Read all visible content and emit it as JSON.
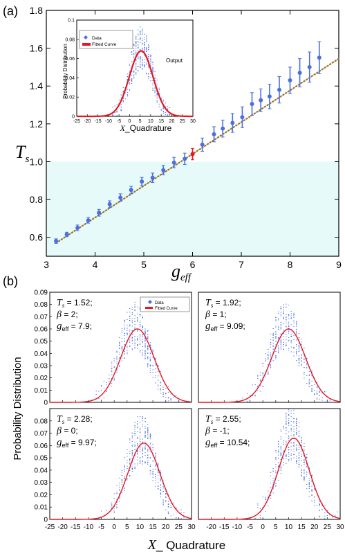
{
  "panel_a": {
    "label": "(a)",
    "xlabel_main": "g",
    "xlabel_sub": "eff",
    "ylabel_main": "T",
    "ylabel_sub": "s",
    "xlim": [
      3,
      9
    ],
    "ylim": [
      0.5,
      1.8
    ],
    "xticks": [
      "3",
      "4",
      "5",
      "6",
      "7",
      "8",
      "9"
    ],
    "yticks": [
      "0.6",
      "0.8",
      "1.0",
      "1.2",
      "1.4",
      "1.6",
      "1.8"
    ],
    "shade_below": 1.0,
    "shade_color": "#e6fafa",
    "point_color": "#4a6fe0",
    "highlight_color": "#e8141e",
    "theory_color": "#a0742a",
    "chart_data": {
      "type": "scatter",
      "x": [
        3.2,
        3.42,
        3.64,
        3.86,
        4.08,
        4.3,
        4.52,
        4.74,
        4.96,
        5.18,
        5.4,
        5.62,
        5.84,
        6.0,
        6.2,
        6.44,
        6.62,
        6.82,
        7.02,
        7.22,
        7.4,
        7.58,
        7.78,
        8.0,
        8.2,
        8.4,
        8.6
      ],
      "y": [
        0.58,
        0.615,
        0.65,
        0.69,
        0.73,
        0.775,
        0.81,
        0.85,
        0.895,
        0.915,
        0.955,
        0.995,
        1.015,
        1.04,
        1.09,
        1.145,
        1.175,
        1.205,
        1.235,
        1.305,
        1.325,
        1.345,
        1.38,
        1.43,
        1.47,
        1.5,
        1.55
      ],
      "err": [
        0.012,
        0.012,
        0.015,
        0.015,
        0.018,
        0.018,
        0.02,
        0.02,
        0.022,
        0.025,
        0.025,
        0.028,
        0.03,
        0.03,
        0.035,
        0.04,
        0.045,
        0.05,
        0.055,
        0.06,
        0.06,
        0.065,
        0.07,
        0.07,
        0.075,
        0.08,
        0.085
      ],
      "highlight_index": 13,
      "theory_line": {
        "x": [
          3.2,
          9.0
        ],
        "y": [
          0.57,
          1.545
        ]
      }
    }
  },
  "inset": {
    "ylabel": "Probability Distribution",
    "xlabel_main": "X",
    "xlabel_sub": "_Quadrature",
    "xticks": [
      "-25",
      "-20",
      "-15",
      "-10",
      "-5",
      "0",
      "5",
      "10",
      "15",
      "20",
      "25",
      "30"
    ],
    "yticks": [
      "0",
      "0.02",
      "0.04",
      "0.06",
      "0.08",
      "0.1"
    ],
    "annotation": "Output",
    "legend_data": "Data",
    "legend_fit": "Fitted Curve",
    "chart_data": {
      "type": "line",
      "xlim": [
        -25,
        30
      ],
      "ylim": [
        0,
        0.1
      ],
      "fit_mean": 5.5,
      "fit_sigma": 5.6,
      "fit_peak": 0.068
    }
  },
  "panel_b": {
    "label": "(b)",
    "ylabel": "Probability Distribution",
    "xlabel_main": "X",
    "xlabel_sub": "_ Quadrature",
    "xticks": [
      "-25",
      "-20",
      "-15",
      "-10",
      "-5",
      "0",
      "5",
      "10",
      "15",
      "20",
      "25",
      "30"
    ],
    "yticks": [
      "0",
      "0.01",
      "0.02",
      "0.03",
      "0.04",
      "0.05",
      "0.06",
      "0.07",
      "0.08",
      "0.09"
    ],
    "legend_data": "Data",
    "legend_fit": "Fitted Curve",
    "data_color": "#4a6fe0",
    "fit_color": "#e8141e",
    "chart_data": [
      {
        "type": "line",
        "ts": "= 1.52;",
        "beta": "= 2;",
        "geff": "= 7.9;",
        "fit_mean": 9.0,
        "fit_sigma": 6.5,
        "fit_peak": 0.06
      },
      {
        "type": "line",
        "ts": "= 1.92;",
        "beta": "= 1;",
        "geff": "= 9.09;",
        "fit_mean": 10.0,
        "fit_sigma": 6.6,
        "fit_peak": 0.06
      },
      {
        "type": "line",
        "ts": "= 2.28;",
        "beta": "= 0;",
        "geff": "= 9.97;",
        "fit_mean": 11.5,
        "fit_sigma": 6.2,
        "fit_peak": 0.062
      },
      {
        "type": "line",
        "ts": "= 2.55;",
        "beta": "= -1;",
        "geff": "= 10.54;",
        "fit_mean": 12.0,
        "fit_sigma": 6.0,
        "fit_peak": 0.066
      }
    ]
  }
}
